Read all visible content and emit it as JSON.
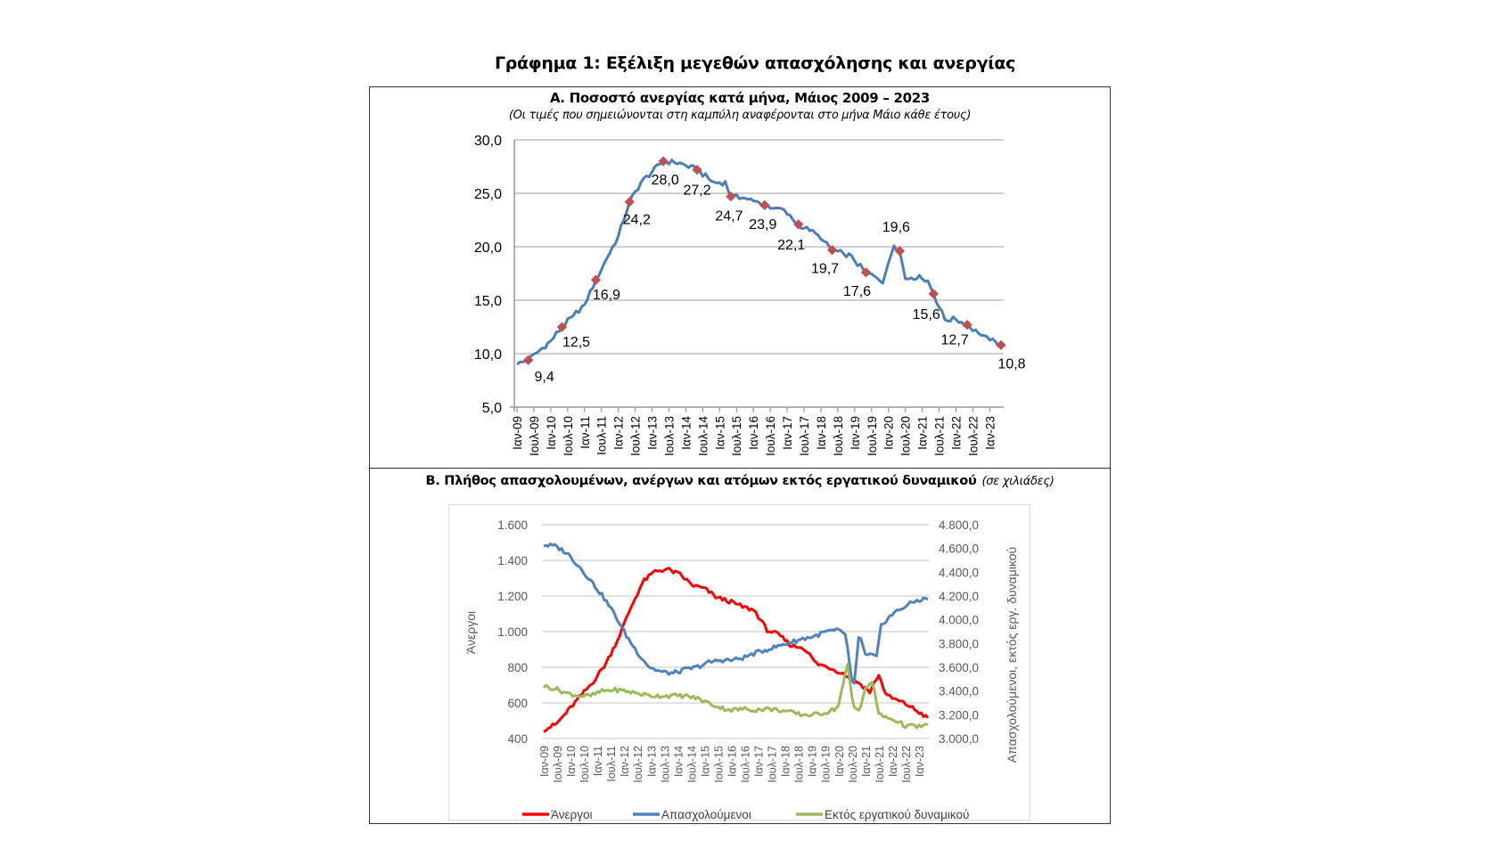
{
  "page": {
    "main_title": "Γράφημα 1: Εξέλιξη μεγεθών απασχόλησης και ανεργίας"
  },
  "panel_a": {
    "title": "Α. Ποσοστό ανεργίας κατά μήνα, Μάιος 2009 – 2023",
    "subtitle": "(Οι τιμές που σημειώνονται στη καμπύλη αναφέρονται στο μήνα Μάιο κάθε έτους)"
  },
  "panel_b": {
    "title": "Β. Πλήθος απασχολουμένων, ανέργων και ατόμων εκτός εργατικού δυναμικού",
    "units": "(σε χιλιάδες)"
  },
  "colors": {
    "rate_line": "#4a7ebb",
    "rate_marker": "#c0504d",
    "unemployed": "#ff0000",
    "employed": "#4f81bd",
    "inactive": "#9bbb59",
    "grid": "#bfbfbf"
  },
  "chart_data": [
    {
      "type": "line",
      "title": "Α. Ποσοστό ανεργίας κατά μήνα, Μάιος 2009 – 2023",
      "xlabel": "",
      "ylabel": "",
      "ylim": [
        5,
        30
      ],
      "yticks": [
        "5,0",
        "10,0",
        "15,0",
        "20,0",
        "25,0",
        "30,0"
      ],
      "ytick_values": [
        5,
        10,
        15,
        20,
        25,
        30
      ],
      "grid": true,
      "x_start": "Ιαν-09",
      "x_end": "Μάι-23",
      "xtick_labels": [
        "Ιαν-09",
        "Ιουλ-09",
        "Ιαν-10",
        "Ιουλ-10",
        "Ιαν-11",
        "Ιουλ-11",
        "Ιαν-12",
        "Ιουλ-12",
        "Ιαν-13",
        "Ιουλ-13",
        "Ιαν-14",
        "Ιουλ-14",
        "Ιαν-15",
        "Ιουλ-15",
        "Ιαν-16",
        "Ιουλ-16",
        "Ιαν-17",
        "Ιουλ-17",
        "Ιαν-18",
        "Ιουλ-18",
        "Ιαν-19",
        "Ιουλ-19",
        "Ιαν-20",
        "Ιουλ-20",
        "Ιαν-21",
        "Ιουλ-21",
        "Ιαν-22",
        "Ιουλ-22",
        "Ιαν-23"
      ],
      "monthly_anchor_points": [
        {
          "m": 0,
          "v": 9.0
        },
        {
          "m": 4,
          "v": 9.4
        },
        {
          "m": 12,
          "v": 11.2
        },
        {
          "m": 16,
          "v": 12.5
        },
        {
          "m": 24,
          "v": 14.6
        },
        {
          "m": 28,
          "v": 16.9
        },
        {
          "m": 36,
          "v": 21.0
        },
        {
          "m": 40,
          "v": 24.2
        },
        {
          "m": 44,
          "v": 26.0
        },
        {
          "m": 48,
          "v": 27.0
        },
        {
          "m": 52,
          "v": 28.0
        },
        {
          "m": 58,
          "v": 27.8
        },
        {
          "m": 64,
          "v": 27.2
        },
        {
          "m": 70,
          "v": 26.0
        },
        {
          "m": 74,
          "v": 26.0
        },
        {
          "m": 76,
          "v": 24.7
        },
        {
          "m": 82,
          "v": 24.5
        },
        {
          "m": 88,
          "v": 23.9
        },
        {
          "m": 94,
          "v": 23.5
        },
        {
          "m": 100,
          "v": 22.1
        },
        {
          "m": 106,
          "v": 21.2
        },
        {
          "m": 112,
          "v": 19.7
        },
        {
          "m": 118,
          "v": 19.2
        },
        {
          "m": 124,
          "v": 17.6
        },
        {
          "m": 130,
          "v": 16.8
        },
        {
          "m": 134,
          "v": 20.2
        },
        {
          "m": 136,
          "v": 19.6
        },
        {
          "m": 138,
          "v": 17.0
        },
        {
          "m": 142,
          "v": 17.2
        },
        {
          "m": 146,
          "v": 16.8
        },
        {
          "m": 148,
          "v": 15.6
        },
        {
          "m": 152,
          "v": 13.2
        },
        {
          "m": 156,
          "v": 13.2
        },
        {
          "m": 160,
          "v": 12.7
        },
        {
          "m": 166,
          "v": 11.5
        },
        {
          "m": 172,
          "v": 10.8
        }
      ],
      "labeled_points": [
        {
          "label": "Μάι-09",
          "value": 9.4,
          "text": "9,4"
        },
        {
          "label": "Μάι-10",
          "value": 12.5,
          "text": "12,5"
        },
        {
          "label": "Μάι-11",
          "value": 16.9,
          "text": "16,9"
        },
        {
          "label": "Μάι-12",
          "value": 24.2,
          "text": "24,2"
        },
        {
          "label": "Μάι-13",
          "value": 28.0,
          "text": "28,0"
        },
        {
          "label": "Μάι-14",
          "value": 27.2,
          "text": "27,2"
        },
        {
          "label": "Μάι-15",
          "value": 24.7,
          "text": "24,7"
        },
        {
          "label": "Μάι-16",
          "value": 23.9,
          "text": "23,9"
        },
        {
          "label": "Μάι-17",
          "value": 22.1,
          "text": "22,1"
        },
        {
          "label": "Μάι-18",
          "value": 19.7,
          "text": "19,7"
        },
        {
          "label": "Μάι-19",
          "value": 17.6,
          "text": "17,6"
        },
        {
          "label": "Μάι-20",
          "value": 19.6,
          "text": "19,6"
        },
        {
          "label": "Μάι-21",
          "value": 15.6,
          "text": "15,6"
        },
        {
          "label": "Μάι-22",
          "value": 12.7,
          "text": "12,7"
        },
        {
          "label": "Μάι-23",
          "value": 10.8,
          "text": "10,8"
        }
      ]
    },
    {
      "type": "line",
      "title": "Β. Πλήθος απασχολουμένων, ανέργων και ατόμων εκτός εργατικού δυναμικού (σε χιλιάδες)",
      "ylabel": "Άνεργοι",
      "y2label": "Απασχολούμενοι, εκτός εργ. δυναμικού",
      "ylim": [
        400,
        1600
      ],
      "y2lim": [
        3000,
        4800
      ],
      "yticks": [
        "400",
        "600",
        "800",
        "1.000",
        "1.200",
        "1.400",
        "1.600"
      ],
      "ytick_values": [
        400,
        600,
        800,
        1000,
        1200,
        1400,
        1600
      ],
      "y2ticks": [
        "3.000,0",
        "3.200,0",
        "3.400,0",
        "3.600,0",
        "3.800,0",
        "4.000,0",
        "4.200,0",
        "4.400,0",
        "4.600,0",
        "4.800,0"
      ],
      "y2tick_values": [
        3000,
        3200,
        3400,
        3600,
        3800,
        4000,
        4200,
        4400,
        4600,
        4800
      ],
      "grid": true,
      "legend_position": "bottom",
      "xtick_labels": [
        "Ιαν-09",
        "Ιουλ-09",
        "Ιαν-10",
        "Ιουλ-10",
        "Ιαν-11",
        "Ιουλ-11",
        "Ιαν-12",
        "Ιουλ-12",
        "Ιαν-13",
        "Ιουλ-13",
        "Ιαν-14",
        "Ιουλ-14",
        "Ιαν-15",
        "Ιουλ-15",
        "Ιαν-16",
        "Ιουλ-16",
        "Ιαν-17",
        "Ιουλ-17",
        "Ιαν-18",
        "Ιουλ-18",
        "Ιαν-19",
        "Ιουλ-19",
        "Ιαν-20",
        "Ιουλ-20",
        "Ιαν-21",
        "Ιουλ-21",
        "Ιαν-22",
        "Ιουλ-22",
        "Ιαν-23"
      ],
      "series": [
        {
          "name": "Άνεργοι",
          "axis": "left",
          "color": "#ff0000",
          "anchors": [
            {
              "m": 0,
              "v": 450
            },
            {
              "m": 6,
              "v": 480
            },
            {
              "m": 12,
              "v": 560
            },
            {
              "m": 18,
              "v": 640
            },
            {
              "m": 24,
              "v": 720
            },
            {
              "m": 30,
              "v": 820
            },
            {
              "m": 36,
              "v": 960
            },
            {
              "m": 42,
              "v": 1130
            },
            {
              "m": 48,
              "v": 1280
            },
            {
              "m": 54,
              "v": 1340
            },
            {
              "m": 60,
              "v": 1350
            },
            {
              "m": 66,
              "v": 1320
            },
            {
              "m": 72,
              "v": 1260
            },
            {
              "m": 78,
              "v": 1240
            },
            {
              "m": 84,
              "v": 1190
            },
            {
              "m": 90,
              "v": 1170
            },
            {
              "m": 96,
              "v": 1140
            },
            {
              "m": 102,
              "v": 1120
            },
            {
              "m": 108,
              "v": 1010
            },
            {
              "m": 114,
              "v": 980
            },
            {
              "m": 120,
              "v": 920
            },
            {
              "m": 126,
              "v": 910
            },
            {
              "m": 132,
              "v": 820
            },
            {
              "m": 138,
              "v": 800
            },
            {
              "m": 144,
              "v": 770
            },
            {
              "m": 148,
              "v": 740
            },
            {
              "m": 150,
              "v": 730
            },
            {
              "m": 154,
              "v": 700
            },
            {
              "m": 158,
              "v": 660
            },
            {
              "m": 162,
              "v": 760
            },
            {
              "m": 166,
              "v": 640
            },
            {
              "m": 172,
              "v": 610
            },
            {
              "m": 176,
              "v": 590
            },
            {
              "m": 180,
              "v": 560
            },
            {
              "m": 184,
              "v": 530
            },
            {
              "m": 186,
              "v": 510
            }
          ]
        },
        {
          "name": "Απασχολούμενοι",
          "axis": "right",
          "color": "#4f81bd",
          "anchors": [
            {
              "m": 0,
              "v": 4630
            },
            {
              "m": 6,
              "v": 4620
            },
            {
              "m": 12,
              "v": 4560
            },
            {
              "m": 18,
              "v": 4450
            },
            {
              "m": 24,
              "v": 4330
            },
            {
              "m": 30,
              "v": 4200
            },
            {
              "m": 36,
              "v": 4050
            },
            {
              "m": 42,
              "v": 3870
            },
            {
              "m": 48,
              "v": 3720
            },
            {
              "m": 54,
              "v": 3600
            },
            {
              "m": 60,
              "v": 3560
            },
            {
              "m": 66,
              "v": 3550
            },
            {
              "m": 72,
              "v": 3580
            },
            {
              "m": 78,
              "v": 3600
            },
            {
              "m": 84,
              "v": 3640
            },
            {
              "m": 90,
              "v": 3660
            },
            {
              "m": 96,
              "v": 3660
            },
            {
              "m": 102,
              "v": 3680
            },
            {
              "m": 108,
              "v": 3720
            },
            {
              "m": 114,
              "v": 3750
            },
            {
              "m": 120,
              "v": 3780
            },
            {
              "m": 126,
              "v": 3810
            },
            {
              "m": 132,
              "v": 3840
            },
            {
              "m": 138,
              "v": 3860
            },
            {
              "m": 144,
              "v": 3900
            },
            {
              "m": 150,
              "v": 3910
            },
            {
              "m": 154,
              "v": 3880
            },
            {
              "m": 158,
              "v": 3380
            },
            {
              "m": 161,
              "v": 3900
            },
            {
              "m": 164,
              "v": 3700
            },
            {
              "m": 168,
              "v": 3700
            },
            {
              "m": 170,
              "v": 3680
            },
            {
              "m": 172,
              "v": 3950
            },
            {
              "m": 176,
              "v": 4020
            },
            {
              "m": 180,
              "v": 4070
            },
            {
              "m": 184,
              "v": 4110
            },
            {
              "m": 190,
              "v": 4160
            },
            {
              "m": 196,
              "v": 4180
            }
          ]
        },
        {
          "name": "Εκτός εργατικού δυναμικού",
          "axis": "right",
          "color": "#9bbb59",
          "anchors": [
            {
              "m": 0,
              "v": 3440
            },
            {
              "m": 6,
              "v": 3420
            },
            {
              "m": 12,
              "v": 3380
            },
            {
              "m": 18,
              "v": 3360
            },
            {
              "m": 24,
              "v": 3360
            },
            {
              "m": 30,
              "v": 3400
            },
            {
              "m": 36,
              "v": 3410
            },
            {
              "m": 42,
              "v": 3400
            },
            {
              "m": 48,
              "v": 3380
            },
            {
              "m": 54,
              "v": 3360
            },
            {
              "m": 60,
              "v": 3360
            },
            {
              "m": 66,
              "v": 3360
            },
            {
              "m": 72,
              "v": 3360
            },
            {
              "m": 78,
              "v": 3340
            },
            {
              "m": 84,
              "v": 3300
            },
            {
              "m": 90,
              "v": 3260
            },
            {
              "m": 96,
              "v": 3240
            },
            {
              "m": 102,
              "v": 3250
            },
            {
              "m": 108,
              "v": 3240
            },
            {
              "m": 114,
              "v": 3250
            },
            {
              "m": 120,
              "v": 3240
            },
            {
              "m": 126,
              "v": 3220
            },
            {
              "m": 132,
              "v": 3200
            },
            {
              "m": 138,
              "v": 3200
            },
            {
              "m": 144,
              "v": 3220
            },
            {
              "m": 150,
              "v": 3260
            },
            {
              "m": 155,
              "v": 3620
            },
            {
              "m": 158,
              "v": 3260
            },
            {
              "m": 161,
              "v": 3240
            },
            {
              "m": 164,
              "v": 3420
            },
            {
              "m": 168,
              "v": 3470
            },
            {
              "m": 171,
              "v": 3200
            },
            {
              "m": 176,
              "v": 3170
            },
            {
              "m": 180,
              "v": 3150
            },
            {
              "m": 184,
              "v": 3110
            },
            {
              "m": 190,
              "v": 3100
            },
            {
              "m": 196,
              "v": 3110
            }
          ]
        }
      ]
    }
  ]
}
